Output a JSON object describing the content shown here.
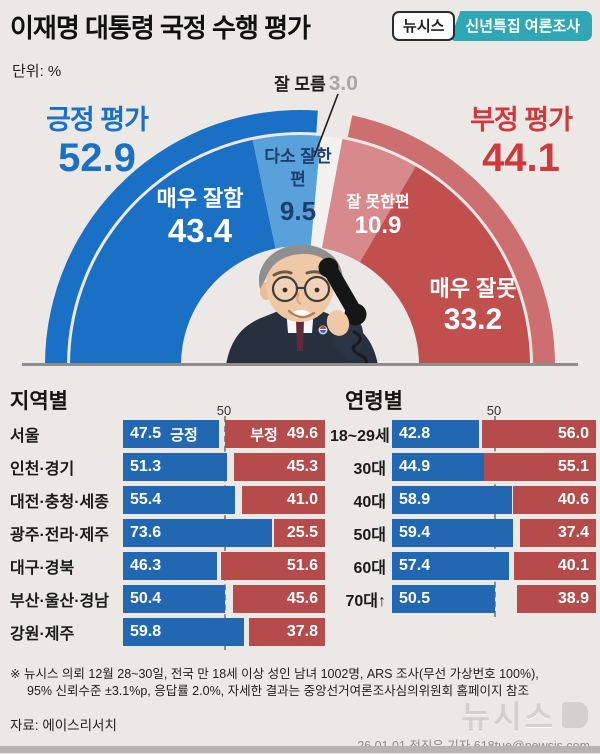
{
  "header": {
    "title": "이재명 대통령 국정 수행 평가",
    "brand": "뉴시스",
    "badge": "신년특집 여론조사",
    "unit_label": "단위: %"
  },
  "colors": {
    "background": "#ebe8e5",
    "positive_blue": "#1a70c4",
    "positive_light_blue": "#58a1da",
    "negative_red_text": "#cf393c",
    "negative_outer": "#cd6f71",
    "somewhat_bad": "#d8898b",
    "very_bad": "#c14f4e",
    "bar_blue": "#2267b2",
    "bar_red": "#b54b4b",
    "badge_teal": "#2fa7b5"
  },
  "chart_data": [
    {
      "type": "pie",
      "variant": "semicircle-donut",
      "title": "이재명 대통령 국정 수행 평가",
      "unit": "%",
      "positive": {
        "label": "긍정 평가",
        "display": "52.9",
        "value": 52.9
      },
      "negative": {
        "label": "부정 평가",
        "display": "44.1",
        "value": 44.1
      },
      "segments": [
        {
          "label": "매우 잘함",
          "value": 43.4,
          "display": "43.4",
          "color": "#1a70c4",
          "text_color": "#ffffff"
        },
        {
          "label": "다소 잘한 편",
          "value": 9.5,
          "display": "9.5",
          "color": "#58a1da",
          "text_color": "#1c3f6e"
        },
        {
          "label": "잘 모름",
          "value": 3.0,
          "display": "3.0",
          "color": "#f3f1ee",
          "text_color": "#a9a7a4"
        },
        {
          "label": "잘 못한편",
          "value": 10.9,
          "display": "10.9",
          "color": "#d8898b",
          "text_color": "#ffffff"
        },
        {
          "label": "매우 잘못",
          "value": 33.2,
          "display": "33.2",
          "color": "#c14f4e",
          "text_color": "#ffffff"
        }
      ],
      "outer_arc": {
        "positive_color": "#1a70c4",
        "negative_color": "#cd6f71"
      }
    },
    {
      "type": "bar",
      "variant": "diverging-pair",
      "title": "지역별",
      "axis_mark": "50",
      "series": [
        "긍정",
        "부정"
      ],
      "show_series_words_on_first_row": true,
      "rows": [
        {
          "label": "서울",
          "pos": 47.5,
          "neg": 49.6
        },
        {
          "label": "인천·경기",
          "pos": 51.3,
          "neg": 45.3
        },
        {
          "label": "대전·충청·세종",
          "pos": 55.4,
          "neg": 41.0
        },
        {
          "label": "광주·전라·제주",
          "pos": 73.6,
          "neg": 25.5
        },
        {
          "label": "대구·경북",
          "pos": 46.3,
          "neg": 51.6
        },
        {
          "label": "부산·울산·경남",
          "pos": 50.4,
          "neg": 45.6
        },
        {
          "label": "강원·제주",
          "pos": 59.8,
          "neg": 37.8
        }
      ]
    },
    {
      "type": "bar",
      "variant": "diverging-pair",
      "title": "연령별",
      "axis_mark": "50",
      "series": [
        "긍정",
        "부정"
      ],
      "show_series_words_on_first_row": false,
      "rows": [
        {
          "label": "18~29세",
          "pos": 42.8,
          "neg": 56.0
        },
        {
          "label": "30대",
          "pos": 44.9,
          "neg": 55.1
        },
        {
          "label": "40대",
          "pos": 58.9,
          "neg": 40.6
        },
        {
          "label": "50대",
          "pos": 59.4,
          "neg": 37.4
        },
        {
          "label": "60대",
          "pos": 57.4,
          "neg": 40.1
        },
        {
          "label": "70대↑",
          "pos": 50.5,
          "neg": 38.9
        }
      ]
    }
  ],
  "footer": {
    "note_line1": "※ 뉴시스 의뢰 12월 28~30일, 전국 만 18세 이상 성인 남녀 1002명, ARS 조사(무선 가상번호 100%),",
    "note_line2": "95% 신뢰수준 ±3.1%p, 응답률 2.0%, 자세한 결과는 중앙선거여론조사심의위원회 홈페이지 참조",
    "source": "자료: 에이스리서치",
    "credit": "26.01.01 전진우 기자 618tue@newsis.com",
    "watermark": "뉴시스"
  }
}
